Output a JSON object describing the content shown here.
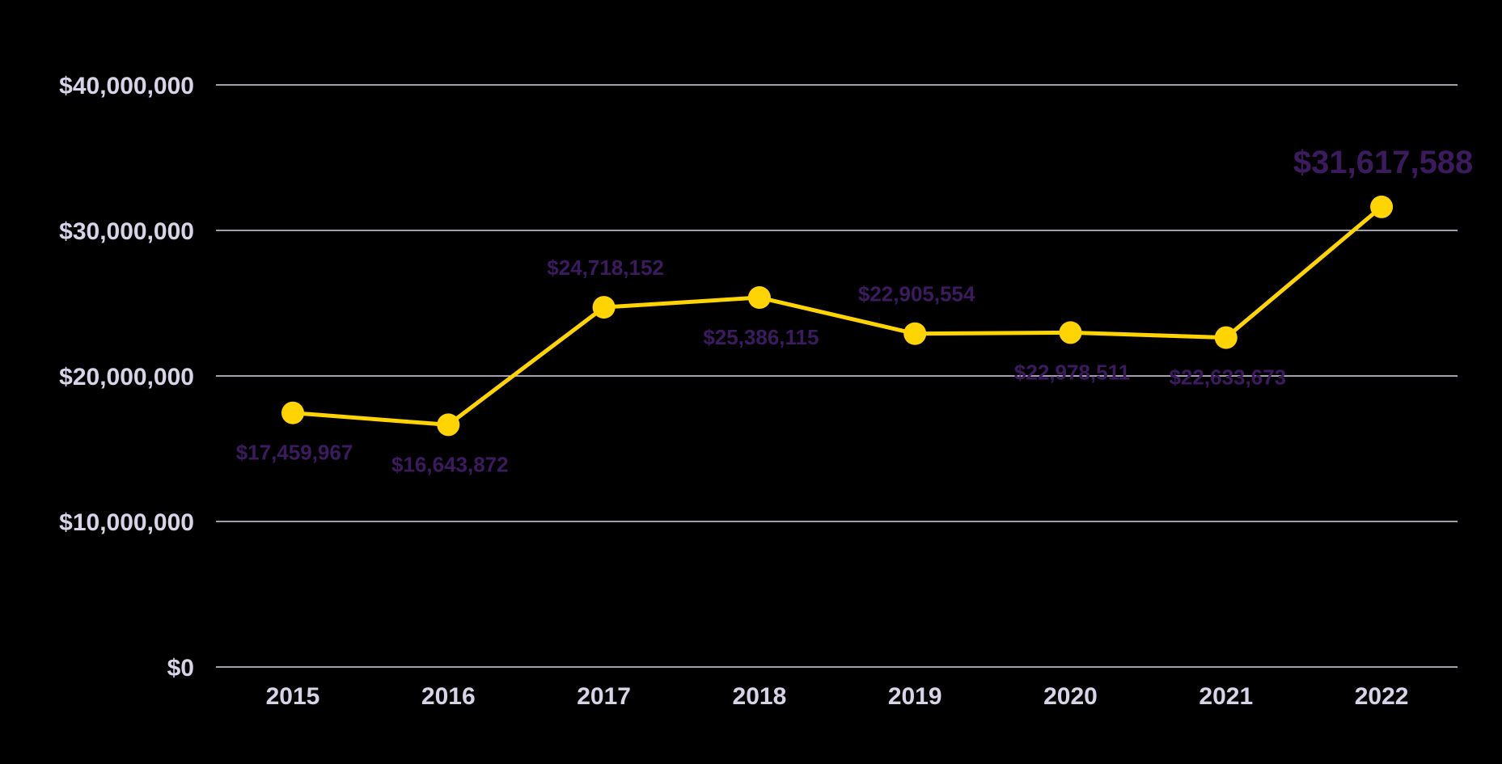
{
  "chart_data": {
    "type": "line",
    "categories": [
      "2015",
      "2016",
      "2017",
      "2018",
      "2019",
      "2020",
      "2021",
      "2022"
    ],
    "values": [
      17459967,
      16643872,
      24718152,
      25386115,
      22905554,
      22978511,
      22633673,
      31617588
    ],
    "data_labels": [
      "$17,459,967",
      "$16,643,872",
      "$24,718,152",
      "$25,386,115",
      "$22,905,554",
      "$22,978,511",
      "$22,633,673",
      "$31,617,588"
    ],
    "label_positions": [
      "below",
      "below",
      "above",
      "below",
      "above",
      "below",
      "below",
      "above"
    ],
    "highlight_index": 7,
    "y_ticks": [
      0,
      10000000,
      20000000,
      30000000,
      40000000
    ],
    "y_tick_labels": [
      "$0",
      "$10,000,000",
      "$20,000,000",
      "$30,000,000",
      "$40,000,000"
    ],
    "ylim": [
      0,
      40000000
    ],
    "grid": true,
    "title": "",
    "xlabel": "",
    "ylabel": "",
    "colors": {
      "background": "#000000",
      "line": "#FFD400",
      "marker": "#FFD400",
      "grid": "#D8D2E6",
      "axis_text": "#D9D3E8",
      "data_label": "#3C1A5E"
    }
  }
}
